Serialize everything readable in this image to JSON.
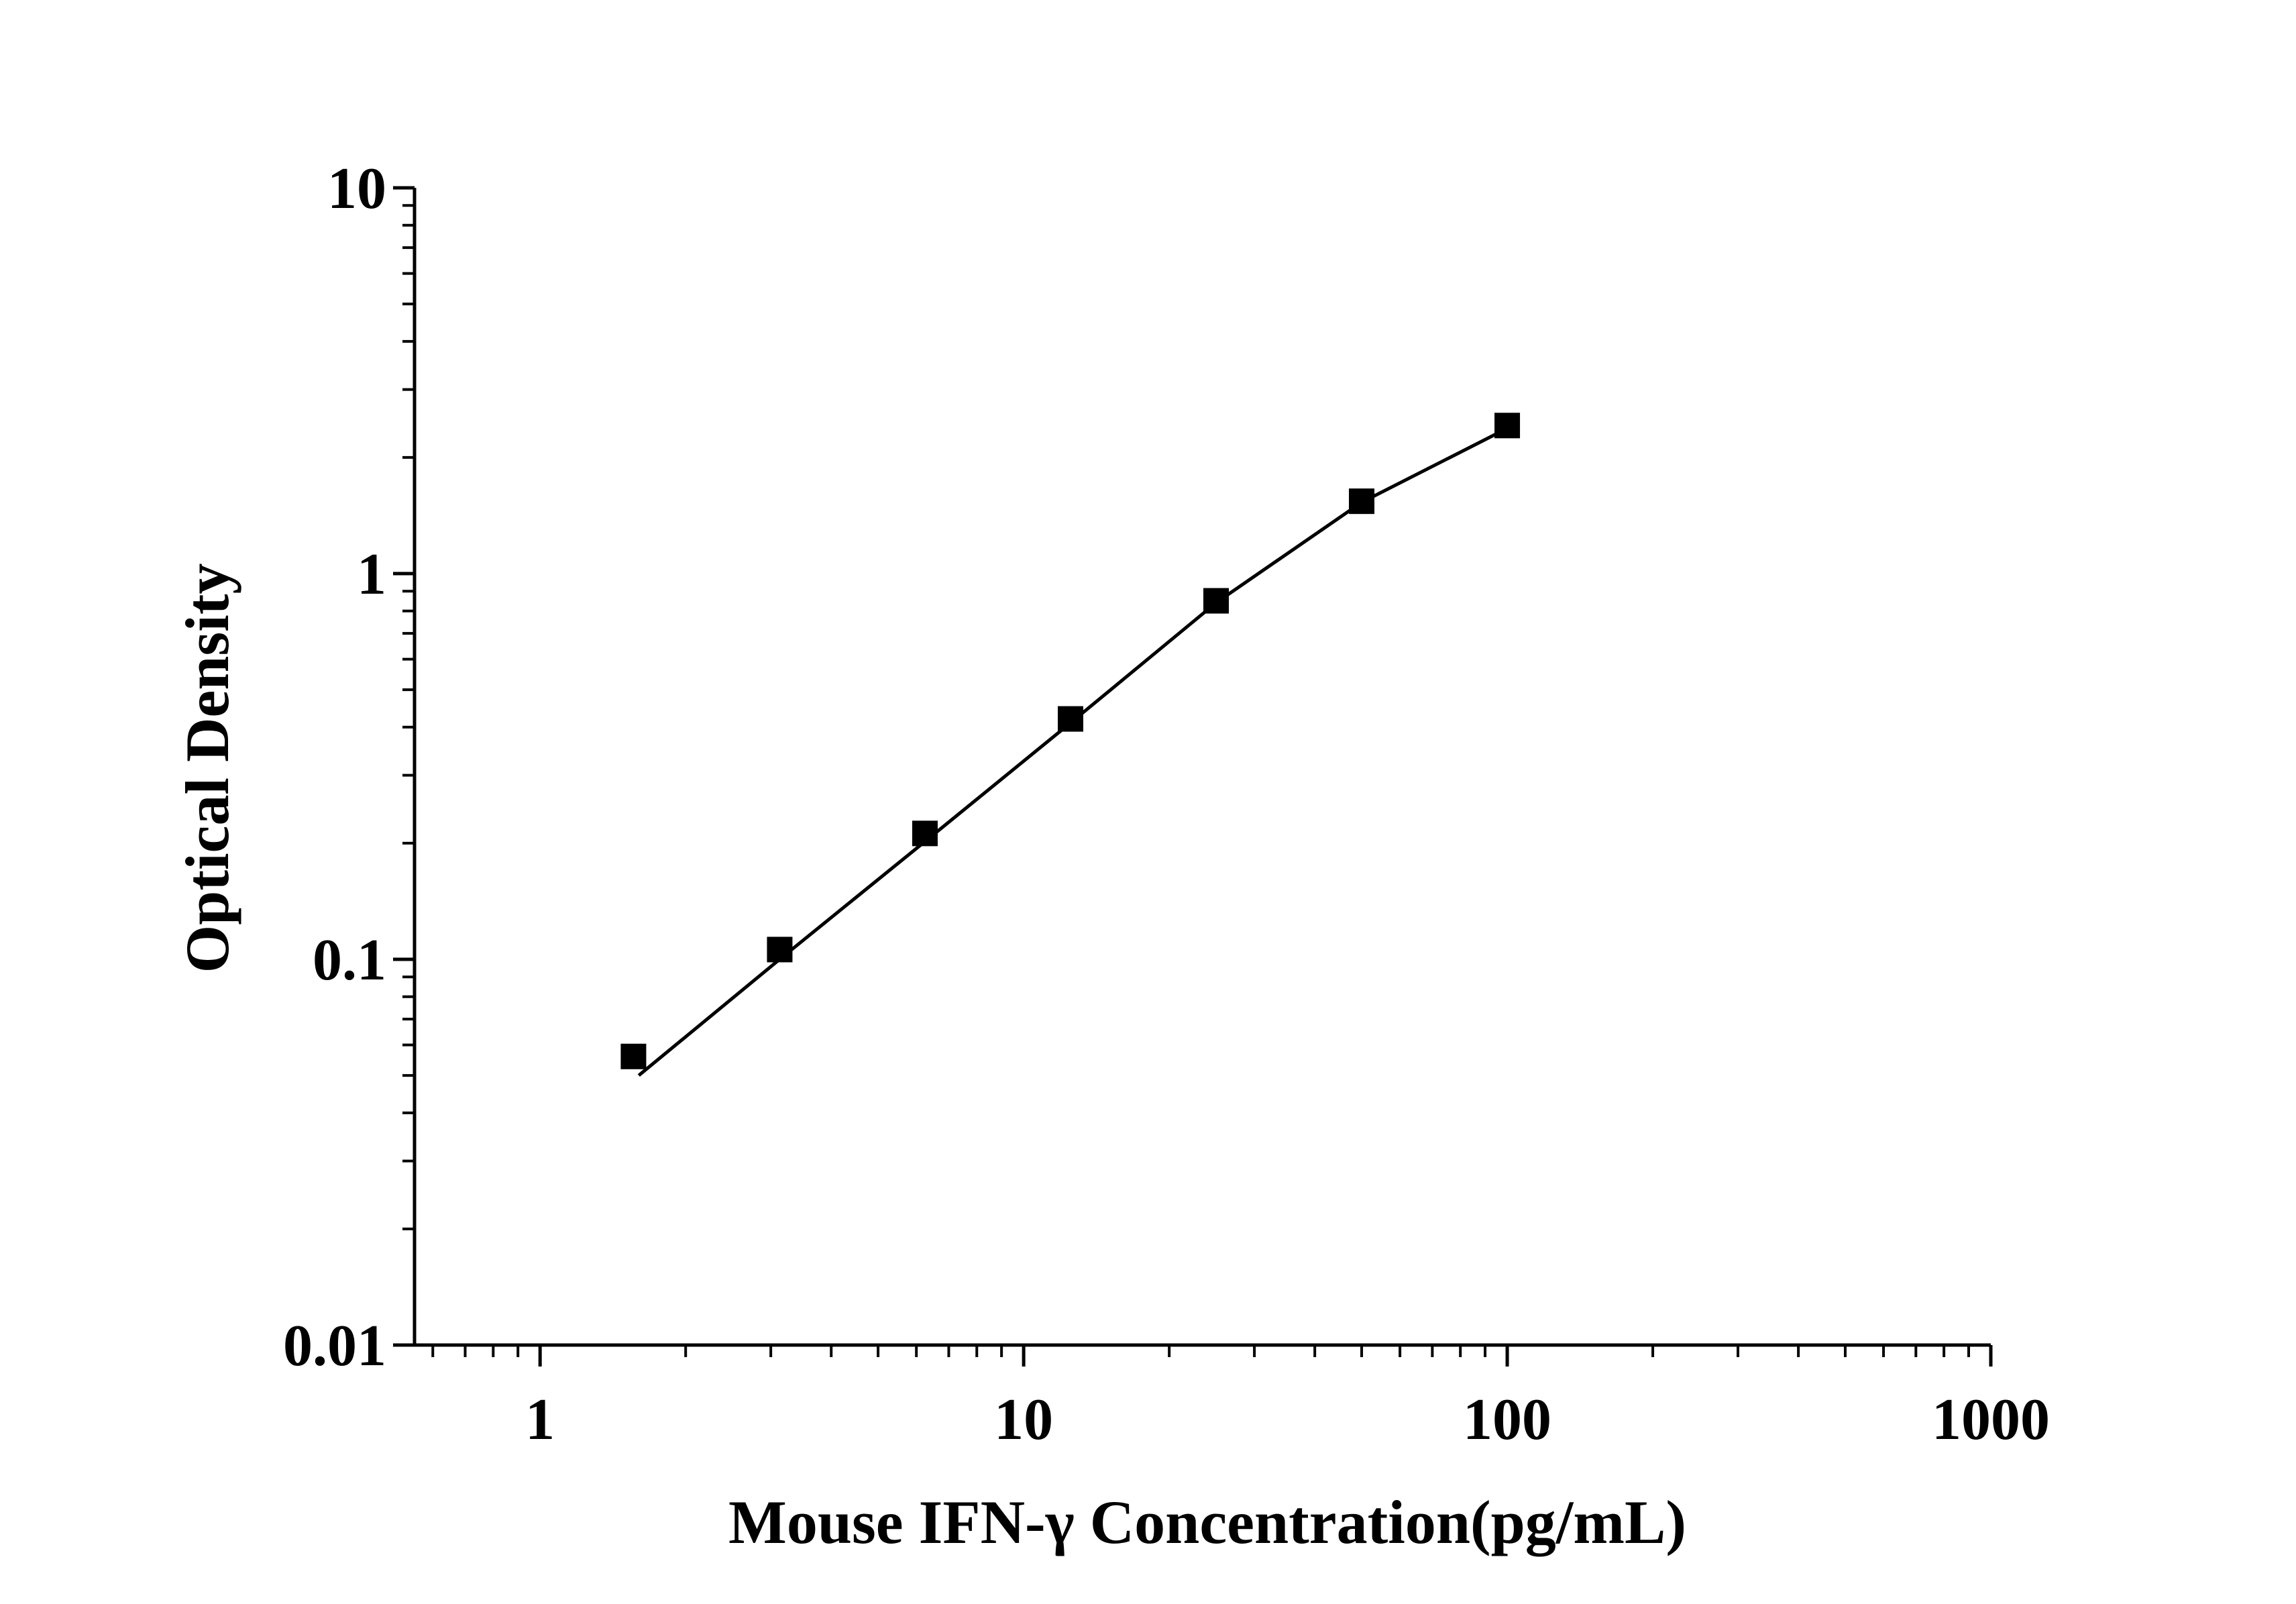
{
  "chart_data": {
    "type": "scatter",
    "title": "",
    "xlabel": "Mouse IFN-γ Concentration(pg/mL)",
    "ylabel": "Optical Density",
    "x_scale": "log",
    "y_scale": "log",
    "xlim": [
      0.55,
      1000
    ],
    "ylim": [
      0.01,
      10
    ],
    "x_ticks": [
      {
        "value": 1,
        "label": "1"
      },
      {
        "value": 10,
        "label": "10"
      },
      {
        "value": 100,
        "label": "100"
      },
      {
        "value": 1000,
        "label": "1000"
      }
    ],
    "y_ticks": [
      {
        "value": 0.01,
        "label": "0.01"
      },
      {
        "value": 0.1,
        "label": "0.1"
      },
      {
        "value": 1,
        "label": "1"
      },
      {
        "value": 10,
        "label": "10"
      }
    ],
    "grid": false,
    "legend": "none",
    "series": [
      {
        "marker": "square",
        "color": "#000000",
        "x": [
          1.56,
          3.13,
          6.25,
          12.5,
          25,
          50,
          100
        ],
        "y": [
          0.056,
          0.106,
          0.212,
          0.42,
          0.85,
          1.54,
          2.42
        ]
      }
    ],
    "fit_curve": {
      "color": "#000000",
      "x": [
        1.6,
        3.13,
        6.25,
        12.5,
        25,
        50,
        100
      ],
      "y": [
        0.05,
        0.1,
        0.202,
        0.41,
        0.84,
        1.53,
        2.38
      ]
    }
  }
}
